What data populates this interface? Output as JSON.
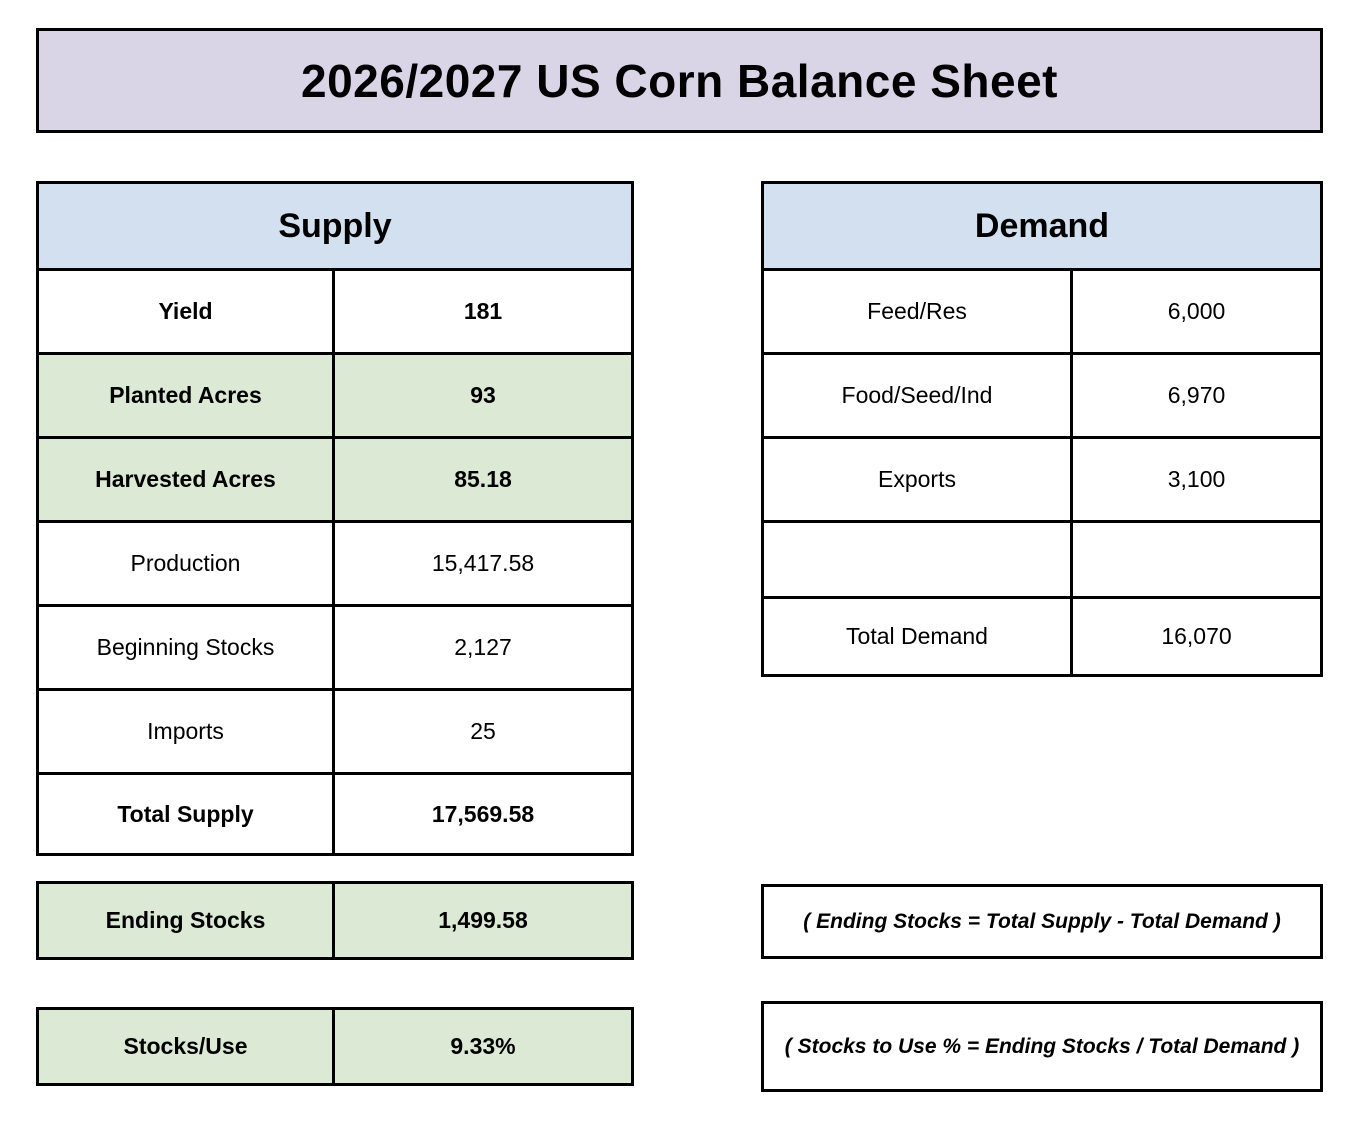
{
  "title": "2026/2027 US Corn Balance Sheet",
  "supply": {
    "header": "Supply",
    "rows": [
      {
        "label": "Yield",
        "value": "181"
      },
      {
        "label": "Planted Acres",
        "value": "93"
      },
      {
        "label": "Harvested Acres",
        "value": "85.18"
      },
      {
        "label": "Production",
        "value": "15,417.58"
      },
      {
        "label": "Beginning Stocks",
        "value": "2,127"
      },
      {
        "label": "Imports",
        "value": "25"
      },
      {
        "label": "Total Supply",
        "value": "17,569.58"
      }
    ]
  },
  "demand": {
    "header": "Demand",
    "rows": [
      {
        "label": "Feed/Res",
        "value": "6,000"
      },
      {
        "label": "Food/Seed/Ind",
        "value": "6,970"
      },
      {
        "label": "Exports",
        "value": "3,100"
      },
      {
        "label": "",
        "value": ""
      },
      {
        "label": "Total Demand",
        "value": "16,070"
      }
    ]
  },
  "summary": {
    "ending_stocks": {
      "label": "Ending Stocks",
      "value": "1,499.58"
    },
    "stocks_use": {
      "label": "Stocks/Use",
      "value": "9.33%"
    }
  },
  "notes": {
    "ending_stocks_formula": "( Ending Stocks = Total Supply - Total Demand )",
    "stocks_use_formula": "( Stocks to Use % = Ending Stocks / Total Demand )"
  },
  "colors": {
    "title_bg": "#DAD4E7",
    "header_bg": "#D3E0F0",
    "highlight_bg": "#DCE9D4",
    "border": "#000000"
  }
}
